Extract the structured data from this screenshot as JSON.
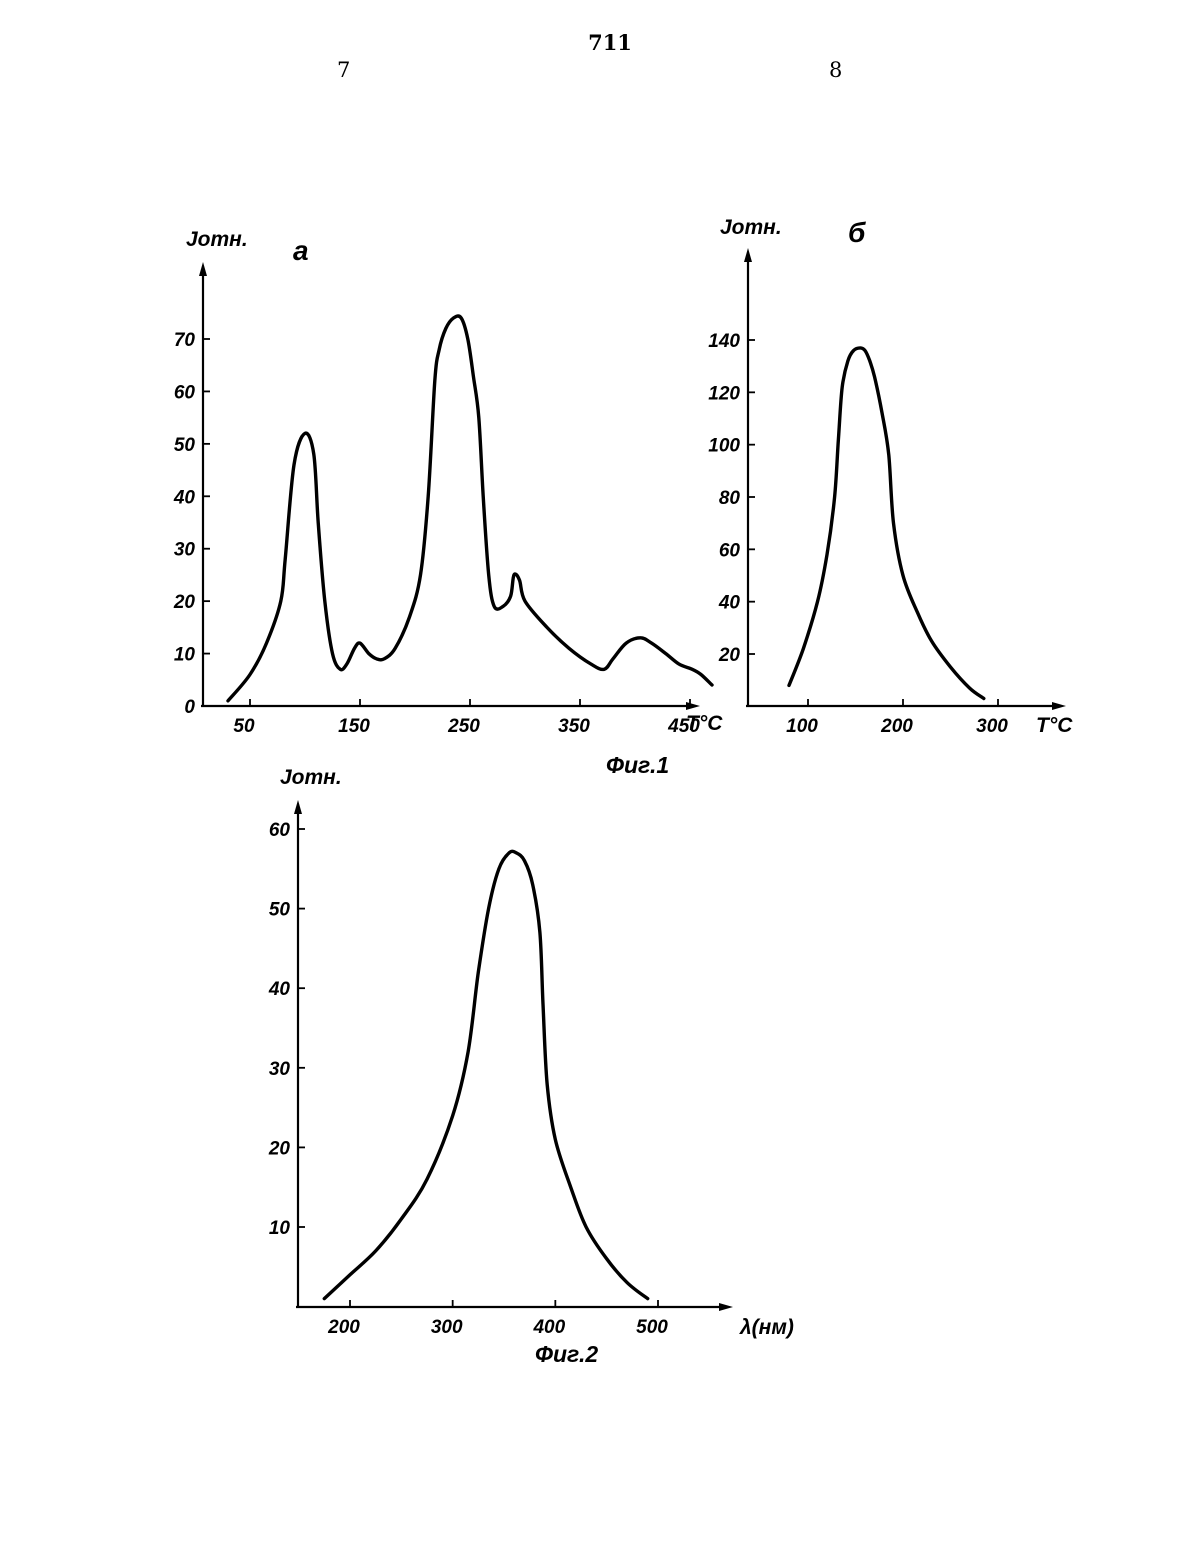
{
  "header": {
    "page_number": "711",
    "left_column": "7",
    "right_column": "8"
  },
  "chart_data": [
    {
      "type": "line",
      "panel": "а",
      "caption": "Фиг.1",
      "ylabel": "Jотн.",
      "xlabel": "T°C",
      "xlim": [
        0,
        480
      ],
      "ylim": [
        0,
        82
      ],
      "xticks": [
        "50",
        "150",
        "250",
        "350",
        "450"
      ],
      "xtick_values": [
        50,
        150,
        250,
        350,
        450
      ],
      "yticks": [
        "0",
        "10",
        "20",
        "30",
        "40",
        "50",
        "60",
        "70"
      ],
      "ytick_values": [
        0,
        10,
        20,
        30,
        40,
        50,
        60,
        70
      ],
      "series": [
        {
          "x": [
            30,
            50,
            65,
            78,
            82,
            90,
            100,
            108,
            112,
            118,
            125,
            132,
            138,
            145,
            150,
            158,
            165,
            172,
            182,
            195,
            205,
            212,
            218,
            222,
            228,
            235,
            242,
            248,
            253,
            258,
            262,
            267,
            272,
            280,
            287,
            290,
            295,
            300,
            320,
            340,
            360,
            372,
            380,
            392,
            405,
            415,
            428,
            440,
            452,
            460,
            470
          ],
          "y": [
            1,
            6,
            12,
            20,
            28,
            46,
            52,
            48,
            35,
            20,
            10,
            7,
            8,
            11,
            12,
            10,
            9,
            9,
            11,
            17,
            25,
            40,
            62,
            68,
            72,
            74,
            74,
            70,
            63,
            55,
            40,
            25,
            19,
            19,
            21,
            25,
            24,
            20,
            15,
            11,
            8,
            7,
            9,
            12,
            13,
            12,
            10,
            8,
            7,
            6,
            4
          ]
        }
      ]
    },
    {
      "type": "line",
      "panel": "б",
      "ylabel": "Jотн.",
      "xlabel": "T°C",
      "xlim": [
        50,
        330
      ],
      "ylim": [
        0,
        162
      ],
      "xticks": [
        "100",
        "200",
        "300"
      ],
      "xtick_values": [
        100,
        200,
        300
      ],
      "yticks": [
        "20",
        "40",
        "60",
        "80",
        "100",
        "120",
        "140"
      ],
      "ytick_values": [
        20,
        40,
        60,
        80,
        100,
        120,
        140
      ],
      "series": [
        {
          "x": [
            80,
            95,
            110,
            120,
            128,
            132,
            136,
            142,
            148,
            155,
            160,
            165,
            170,
            178,
            185,
            190,
            200,
            215,
            230,
            250,
            270,
            285
          ],
          "y": [
            8,
            22,
            40,
            58,
            80,
            102,
            122,
            132,
            136,
            137,
            136,
            132,
            126,
            112,
            96,
            70,
            50,
            36,
            25,
            15,
            7,
            3
          ]
        }
      ]
    },
    {
      "type": "line",
      "caption": "Фиг.2",
      "ylabel": "Jотн.",
      "xlabel": "λ(нм)",
      "xlim": [
        155,
        570
      ],
      "ylim": [
        0,
        65
      ],
      "xticks": [
        "200",
        "300",
        "400",
        "500"
      ],
      "xtick_values": [
        200,
        300,
        400,
        500
      ],
      "yticks": [
        "10",
        "20",
        "30",
        "40",
        "50",
        "60"
      ],
      "ytick_values": [
        10,
        20,
        30,
        40,
        50,
        60
      ],
      "series": [
        {
          "x": [
            175,
            200,
            225,
            250,
            275,
            300,
            315,
            325,
            335,
            345,
            355,
            362,
            370,
            378,
            385,
            388,
            392,
            400,
            415,
            430,
            450,
            470,
            490
          ],
          "y": [
            1,
            4,
            7,
            11,
            16,
            24,
            32,
            42,
            50,
            55,
            57,
            57,
            56,
            53,
            47,
            38,
            28,
            21,
            15,
            10,
            6,
            3,
            1
          ]
        }
      ]
    }
  ]
}
